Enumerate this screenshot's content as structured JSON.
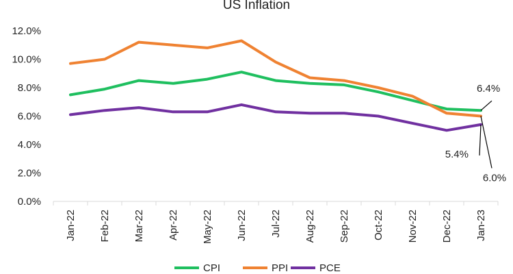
{
  "chart_data": {
    "type": "line",
    "title": "US Inflation",
    "xlabel": "",
    "ylabel": "",
    "categories": [
      "Jan-22",
      "Feb-22",
      "Mar-22",
      "Apr-22",
      "May-22",
      "Jun-22",
      "Jul-22",
      "Aug-22",
      "Sep-22",
      "Oct-22",
      "Nov-22",
      "Dec-22",
      "Jan-23"
    ],
    "ylim": [
      0,
      12
    ],
    "yticks": [
      "0.0%",
      "2.0%",
      "4.0%",
      "6.0%",
      "8.0%",
      "10.0%",
      "12.0%"
    ],
    "grid": false,
    "legend_position": "bottom",
    "series": [
      {
        "name": "CPI",
        "color": "#1fbf5f",
        "values": [
          7.5,
          7.9,
          8.5,
          8.3,
          8.6,
          9.1,
          8.5,
          8.3,
          8.2,
          7.7,
          7.1,
          6.5,
          6.4
        ]
      },
      {
        "name": "PPI",
        "color": "#ef8232",
        "values": [
          9.7,
          10.0,
          11.2,
          11.0,
          10.8,
          11.3,
          9.8,
          8.7,
          8.5,
          8.0,
          7.4,
          6.2,
          6.0
        ]
      },
      {
        "name": "PCE",
        "color": "#7030a0",
        "values": [
          6.1,
          6.4,
          6.6,
          6.3,
          6.3,
          6.8,
          6.3,
          6.2,
          6.2,
          6.0,
          5.5,
          5.0,
          5.4
        ]
      }
    ],
    "annotations": [
      {
        "text": "6.4%",
        "series": "CPI",
        "category": "Jan-23"
      },
      {
        "text": "5.4%",
        "series": "PCE",
        "category": "Jan-23"
      },
      {
        "text": "6.0%",
        "series": "PPI",
        "category": "Jan-23"
      }
    ]
  }
}
